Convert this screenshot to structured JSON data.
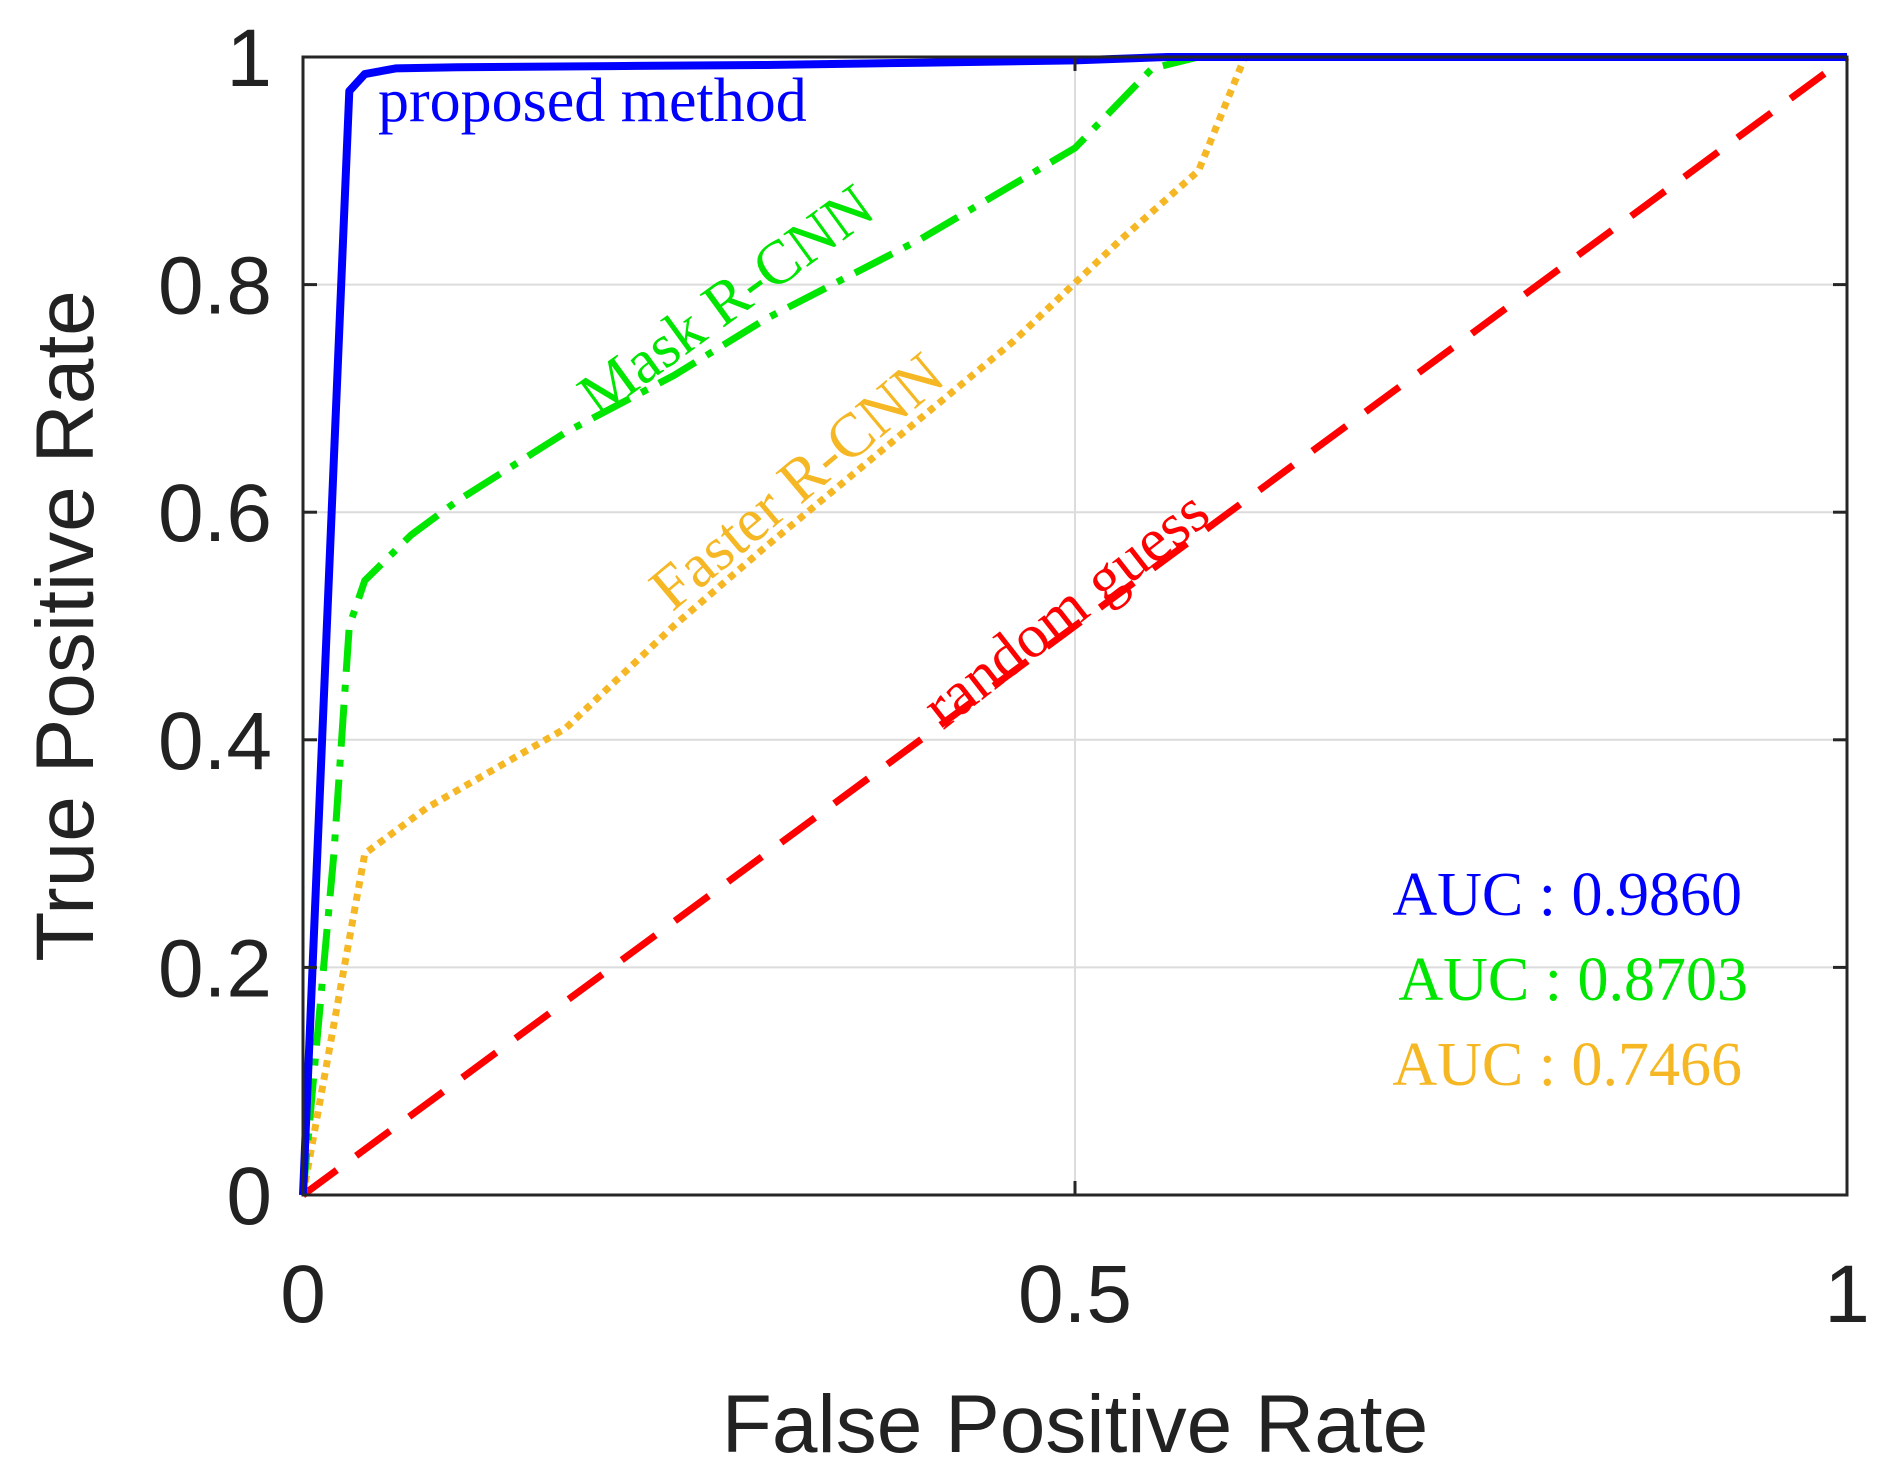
{
  "chart_data": {
    "type": "line",
    "title": "",
    "xlabel": "False Positive Rate",
    "ylabel": "True Positive Rate",
    "xlim": [
      0,
      1
    ],
    "ylim": [
      0,
      1
    ],
    "xticks": [
      0,
      0.5,
      1
    ],
    "xtick_labels": [
      "0",
      "0.5",
      "1"
    ],
    "yticks": [
      0,
      0.2,
      0.4,
      0.6,
      0.8,
      1
    ],
    "ytick_labels": [
      "0",
      "0.2",
      "0.4",
      "0.6",
      "0.8",
      "1"
    ],
    "grid": true,
    "series": [
      {
        "name": "proposed method",
        "color": "#0000ff",
        "style": "solid",
        "auc_label": "AUC : 0.9860",
        "x": [
          0,
          0.03,
          0.04,
          0.06,
          0.1,
          0.2,
          0.3,
          0.4,
          0.5,
          0.56,
          1
        ],
        "y": [
          0,
          0.97,
          0.985,
          0.99,
          0.991,
          0.992,
          0.993,
          0.995,
          0.997,
          1,
          1
        ]
      },
      {
        "name": "Mask R-CNN",
        "color": "#00e600",
        "style": "dashdot",
        "auc_label": "AUC : 0.8703",
        "x": [
          0,
          0.02,
          0.03,
          0.04,
          0.07,
          0.1,
          0.17,
          0.24,
          0.3,
          0.4,
          0.5,
          0.55,
          0.58,
          1
        ],
        "y": [
          0,
          0.3,
          0.5,
          0.54,
          0.58,
          0.61,
          0.67,
          0.72,
          0.77,
          0.84,
          0.92,
          0.99,
          1,
          1
        ]
      },
      {
        "name": "Faster R-CNN",
        "color": "#f5b724",
        "style": "dotted",
        "auc_label": "AUC : 0.7466",
        "x": [
          0,
          0.02,
          0.04,
          0.08,
          0.17,
          0.24,
          0.3,
          0.38,
          0.46,
          0.53,
          0.58,
          0.61,
          1
        ],
        "y": [
          0,
          0.15,
          0.3,
          0.34,
          0.41,
          0.5,
          0.57,
          0.66,
          0.75,
          0.84,
          0.9,
          1,
          1
        ]
      },
      {
        "name": "random guess",
        "color": "#ff0000",
        "style": "dashed",
        "x": [
          0,
          1
        ],
        "y": [
          0,
          1
        ]
      }
    ]
  }
}
